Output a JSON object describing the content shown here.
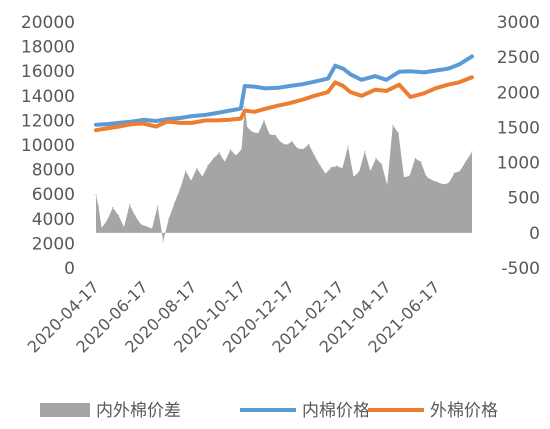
{
  "chart_data": {
    "type": "line",
    "title": "",
    "xlabel": "",
    "ylabel": "",
    "x_tick_labels": [
      "2020-04-17",
      "2020-06-17",
      "2020-08-17",
      "2020-10-17",
      "2020-12-17",
      "2021-02-17",
      "2021-04-17",
      "2021-06-17"
    ],
    "x_range": [
      "2020-04-17",
      "2021-07-31"
    ],
    "left_axis": {
      "ticks": [
        0,
        2000,
        4000,
        6000,
        8000,
        10000,
        12000,
        14000,
        16000,
        18000,
        20000
      ],
      "ylim": [
        0,
        20000
      ]
    },
    "right_axis": {
      "ticks": [
        -500,
        0,
        500,
        1000,
        1500,
        2000,
        2500,
        3000
      ],
      "ylim": [
        -500,
        3000
      ]
    },
    "grid": false,
    "legend_position": "bottom",
    "colors": {
      "spread": "#a5a5a5",
      "domestic": "#5b9bd5",
      "foreign": "#ed7d31"
    },
    "series": [
      {
        "name": "内外棉价差",
        "axis": "right",
        "kind": "area",
        "x": [
          "2020-04-17",
          "2020-04-20",
          "2020-04-24",
          "2020-05-01",
          "2020-05-08",
          "2020-05-15",
          "2020-05-22",
          "2020-05-29",
          "2020-06-05",
          "2020-06-12",
          "2020-06-19",
          "2020-06-26",
          "2020-07-03",
          "2020-07-10",
          "2020-07-17",
          "2020-07-24",
          "2020-07-31",
          "2020-08-07",
          "2020-08-14",
          "2020-08-21",
          "2020-08-28",
          "2020-09-04",
          "2020-09-11",
          "2020-09-18",
          "2020-09-25",
          "2020-10-02",
          "2020-10-09",
          "2020-10-16",
          "2020-10-20",
          "2020-10-23",
          "2020-10-30",
          "2020-11-06",
          "2020-11-13",
          "2020-11-20",
          "2020-11-27",
          "2020-12-04",
          "2020-12-11",
          "2020-12-18",
          "2020-12-25",
          "2021-01-01",
          "2021-01-08",
          "2021-01-15",
          "2021-01-22",
          "2021-01-29",
          "2021-02-05",
          "2021-02-12",
          "2021-02-19",
          "2021-02-26",
          "2021-03-05",
          "2021-03-12",
          "2021-03-19",
          "2021-03-26",
          "2021-04-02",
          "2021-04-09",
          "2021-04-16",
          "2021-04-23",
          "2021-04-30",
          "2021-05-07",
          "2021-05-14",
          "2021-05-21",
          "2021-05-28",
          "2021-06-04",
          "2021-06-11",
          "2021-06-18",
          "2021-06-25",
          "2021-07-02",
          "2021-07-09",
          "2021-07-16",
          "2021-07-23",
          "2021-07-31"
        ],
        "values": [
          540,
          380,
          70,
          180,
          360,
          250,
          80,
          400,
          240,
          120,
          90,
          60,
          380,
          -120,
          200,
          420,
          620,
          880,
          740,
          920,
          800,
          960,
          1060,
          1140,
          1010,
          1180,
          1100,
          1190,
          1790,
          1500,
          1430,
          1420,
          1600,
          1400,
          1390,
          1290,
          1250,
          1300,
          1200,
          1190,
          1260,
          1100,
          960,
          840,
          930,
          950,
          920,
          1230,
          800,
          870,
          1160,
          880,
          1060,
          980,
          680,
          1530,
          1420,
          790,
          810,
          1060,
          1010,
          800,
          750,
          720,
          690,
          710,
          850,
          880,
          1010,
          1150
        ]
      },
      {
        "name": "内棉价格",
        "axis": "left",
        "kind": "line",
        "x": [
          "2020-04-17",
          "2020-05-01",
          "2020-05-15",
          "2020-06-01",
          "2020-06-15",
          "2020-07-01",
          "2020-07-15",
          "2020-08-01",
          "2020-08-15",
          "2020-09-01",
          "2020-09-15",
          "2020-10-01",
          "2020-10-15",
          "2020-10-20",
          "2020-11-01",
          "2020-11-15",
          "2020-12-01",
          "2020-12-15",
          "2021-01-01",
          "2021-01-15",
          "2021-02-01",
          "2021-02-10",
          "2021-02-20",
          "2021-03-01",
          "2021-03-15",
          "2021-04-01",
          "2021-04-15",
          "2021-05-01",
          "2021-05-15",
          "2021-06-01",
          "2021-06-15",
          "2021-07-01",
          "2021-07-15",
          "2021-07-31"
        ],
        "values": [
          11650,
          11700,
          11800,
          11900,
          12050,
          11950,
          12100,
          12200,
          12350,
          12450,
          12600,
          12800,
          12950,
          14800,
          14750,
          14600,
          14650,
          14800,
          14950,
          15150,
          15400,
          16450,
          16200,
          15750,
          15300,
          15600,
          15300,
          15950,
          16000,
          15900,
          16050,
          16200,
          16550,
          17200
        ]
      },
      {
        "name": "外棉价格",
        "axis": "left",
        "kind": "line",
        "x": [
          "2020-04-17",
          "2020-05-01",
          "2020-05-15",
          "2020-06-01",
          "2020-06-15",
          "2020-07-01",
          "2020-07-15",
          "2020-08-01",
          "2020-08-15",
          "2020-09-01",
          "2020-09-15",
          "2020-10-01",
          "2020-10-15",
          "2020-10-20",
          "2020-11-01",
          "2020-11-15",
          "2020-12-01",
          "2020-12-15",
          "2021-01-01",
          "2021-01-15",
          "2021-02-01",
          "2021-02-10",
          "2021-02-20",
          "2021-03-01",
          "2021-03-15",
          "2021-04-01",
          "2021-04-15",
          "2021-05-01",
          "2021-05-15",
          "2021-06-01",
          "2021-06-15",
          "2021-07-01",
          "2021-07-15",
          "2021-07-31"
        ],
        "values": [
          11200,
          11350,
          11500,
          11700,
          11750,
          11500,
          11900,
          11800,
          11800,
          12000,
          12000,
          12050,
          12150,
          12800,
          12700,
          12950,
          13200,
          13400,
          13700,
          14000,
          14300,
          15100,
          14800,
          14300,
          14000,
          14500,
          14400,
          14900,
          13900,
          14200,
          14600,
          14900,
          15100,
          15500
        ]
      }
    ]
  }
}
